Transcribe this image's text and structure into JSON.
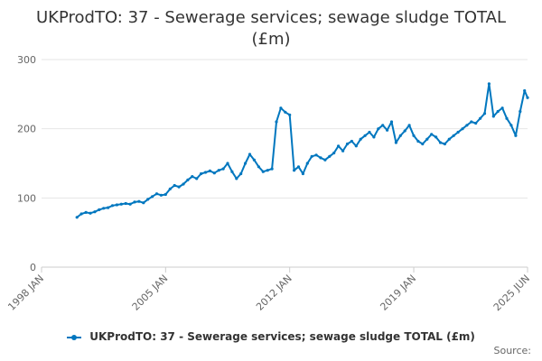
{
  "chart_data": {
    "type": "line",
    "title_line1": "UKProdTO: 37 - Sewerage services; sewage sludge TOTAL",
    "title_line2": "(£m)",
    "xlabel": "",
    "ylabel": "",
    "x_tick_labels": [
      "1998 JAN",
      "2005 JAN",
      "2012 JAN",
      "2019 JAN",
      "2025 JUN"
    ],
    "x_tick_years": [
      1998.0,
      2005.0,
      2012.0,
      2019.0,
      2025.42
    ],
    "x_range": [
      1998.0,
      2025.42
    ],
    "y_ticks": [
      0,
      100,
      200,
      300
    ],
    "ylim": [
      0,
      300
    ],
    "grid": true,
    "legend_position": "bottom",
    "color": "#0077bf",
    "series": [
      {
        "name": "UKProdTO: 37 - Sewerage services; sewage sludge TOTAL (£m)",
        "x": [
          2000.0,
          2000.25,
          2000.5,
          2000.75,
          2001.0,
          2001.25,
          2001.5,
          2001.75,
          2002.0,
          2002.25,
          2002.5,
          2002.75,
          2003.0,
          2003.25,
          2003.5,
          2003.75,
          2004.0,
          2004.25,
          2004.5,
          2004.75,
          2005.0,
          2005.25,
          2005.5,
          2005.75,
          2006.0,
          2006.25,
          2006.5,
          2006.75,
          2007.0,
          2007.25,
          2007.5,
          2007.75,
          2008.0,
          2008.25,
          2008.5,
          2008.75,
          2009.0,
          2009.25,
          2009.5,
          2009.75,
          2010.0,
          2010.25,
          2010.5,
          2010.75,
          2011.0,
          2011.25,
          2011.5,
          2011.75,
          2012.0,
          2012.25,
          2012.5,
          2012.75,
          2013.0,
          2013.25,
          2013.5,
          2013.75,
          2014.0,
          2014.25,
          2014.5,
          2014.75,
          2015.0,
          2015.25,
          2015.5,
          2015.75,
          2016.0,
          2016.25,
          2016.5,
          2016.75,
          2017.0,
          2017.25,
          2017.5,
          2017.75,
          2018.0,
          2018.25,
          2018.5,
          2018.75,
          2019.0,
          2019.25,
          2019.5,
          2019.75,
          2020.0,
          2020.25,
          2020.5,
          2020.75,
          2021.0,
          2021.25,
          2021.5,
          2021.75,
          2022.0,
          2022.25,
          2022.5,
          2022.75,
          2023.0,
          2023.25,
          2023.5,
          2023.75,
          2024.0,
          2024.25,
          2024.5,
          2024.75,
          2025.0,
          2025.25,
          2025.42
        ],
        "values": [
          72,
          77,
          79,
          78,
          80,
          83,
          85,
          86,
          89,
          90,
          91,
          92,
          91,
          94,
          95,
          93,
          98,
          102,
          106,
          104,
          105,
          113,
          118,
          116,
          120,
          126,
          131,
          128,
          135,
          137,
          139,
          136,
          140,
          142,
          150,
          138,
          128,
          135,
          150,
          163,
          155,
          145,
          138,
          140,
          142,
          210,
          230,
          224,
          220,
          140,
          145,
          135,
          150,
          160,
          162,
          158,
          155,
          160,
          165,
          175,
          168,
          178,
          182,
          175,
          185,
          190,
          195,
          188,
          200,
          205,
          198,
          210,
          180,
          190,
          197,
          205,
          190,
          182,
          178,
          185,
          192,
          188,
          180,
          178,
          185,
          190,
          195,
          200,
          205,
          210,
          208,
          215,
          222,
          265,
          218,
          225,
          230,
          215,
          205,
          190,
          225,
          255,
          245
        ]
      }
    ]
  },
  "legend": {
    "label": "UKProdTO: 37 - Sewerage services; sewage sludge TOTAL (£m)"
  },
  "source_label": "Source:"
}
